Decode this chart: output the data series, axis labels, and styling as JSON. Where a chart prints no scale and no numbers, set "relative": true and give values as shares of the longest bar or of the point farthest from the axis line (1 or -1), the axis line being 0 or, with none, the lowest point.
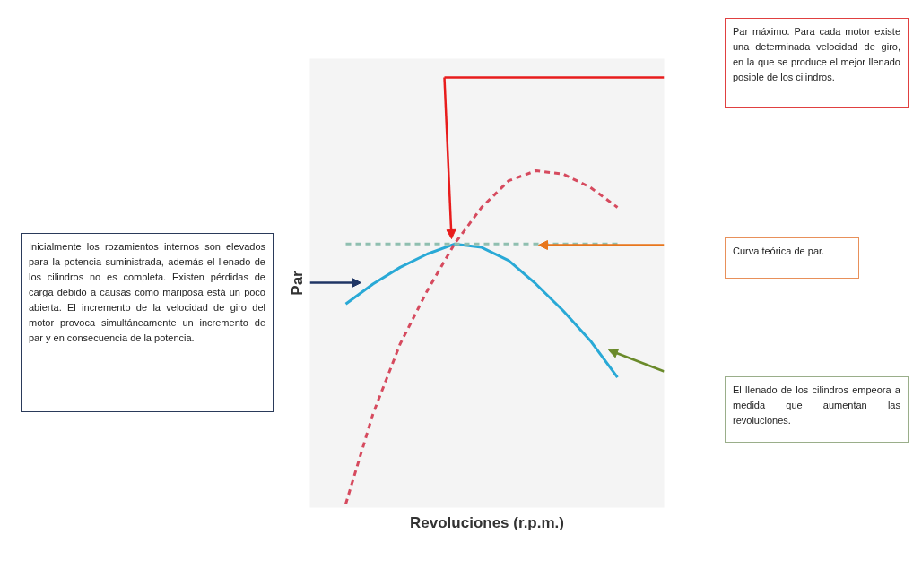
{
  "chart_data": {
    "type": "line",
    "relative": true,
    "xlabel": "Revoluciones (r.p.m.)",
    "ylabel": "Par",
    "categories": [
      null,
      null,
      null,
      null,
      null,
      null,
      null,
      null,
      null,
      null,
      null
    ],
    "series": [
      {
        "color": "#29a9d6",
        "line_style": "solid",
        "values": [
          0.6,
          0.66,
          0.71,
          0.75,
          0.78,
          0.77,
          0.73,
          0.66,
          0.58,
          0.49,
          0.38
        ]
      },
      {
        "color": "#d64a5e",
        "line_style": "dashed",
        "values": [
          0,
          0.27,
          0.48,
          0.64,
          0.78,
          0.89,
          0.97,
          1,
          0.99,
          0.95,
          0.89
        ]
      },
      {
        "color": "#8fbfb0",
        "line_style": "dashed",
        "values": [
          0.78,
          0.78,
          0.78,
          0.78,
          0.78,
          0.78,
          0.78,
          0.78,
          0.78,
          0.78,
          0.78
        ]
      }
    ],
    "annotations": [
      "Par máximo. Para cada motor existe una determinada velocidad de giro, en la que se produce el mejor llenado posible de los cilindros.",
      "Inicialmente los rozamientos internos son elevados para la potencia suministrada, además el llenado de los cilindros no es completa. Existen pérdidas de carga debido a causas como mariposa está un poco abierta. El incremento de la velocidad de giro del motor provoca simultáneamente un incremento de par y en consecuencia de la potencia.",
      "Curva teórica de par.",
      "El llenado de los cilindros empeora a medida que aumentan las revoluciones."
    ]
  }
}
